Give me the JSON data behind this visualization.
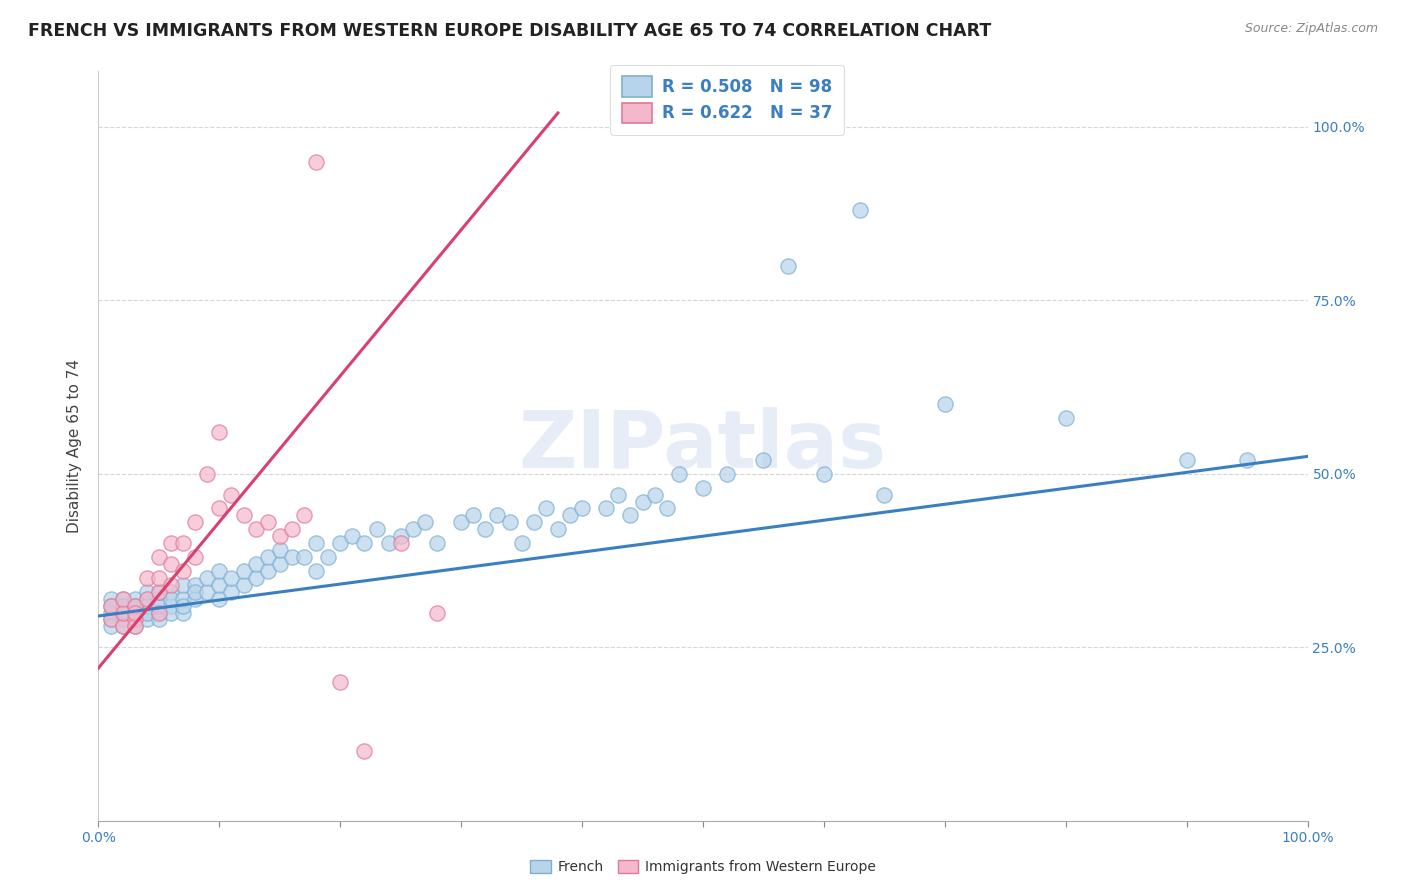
{
  "title": "FRENCH VS IMMIGRANTS FROM WESTERN EUROPE DISABILITY AGE 65 TO 74 CORRELATION CHART",
  "source": "Source: ZipAtlas.com",
  "ylabel": "Disability Age 65 to 74",
  "xlim": [
    0,
    1
  ],
  "ylim": [
    0.0,
    1.08
  ],
  "watermark": "ZIPatlas",
  "french_color": "#b8d4ea",
  "french_edge_color": "#7bafd4",
  "immigrant_color": "#f4b8cc",
  "immigrant_edge_color": "#e07898",
  "trend_french_color": "#3a7fc1",
  "trend_immigrant_color": "#d94070",
  "legend_R_french": "R = 0.508",
  "legend_N_french": "N = 98",
  "legend_R_immigrant": "R = 0.622",
  "legend_N_immigrant": "N = 37",
  "legend_label_french": "French",
  "legend_label_immigrant": "Immigrants from Western Europe",
  "french_trend_x": [
    0.0,
    1.0
  ],
  "french_trend_y": [
    0.295,
    0.525
  ],
  "immigrant_trend_x": [
    0.0,
    0.38
  ],
  "immigrant_trend_y": [
    0.22,
    1.02
  ],
  "grid_color": "#cccccc",
  "background_color": "#ffffff",
  "title_fontsize": 12.5,
  "axis_fontsize": 11,
  "tick_fontsize": 10,
  "legend_fontsize": 12,
  "french_x": [
    0.01,
    0.01,
    0.01,
    0.01,
    0.01,
    0.02,
    0.02,
    0.02,
    0.02,
    0.02,
    0.02,
    0.02,
    0.03,
    0.03,
    0.03,
    0.03,
    0.03,
    0.03,
    0.04,
    0.04,
    0.04,
    0.04,
    0.04,
    0.04,
    0.05,
    0.05,
    0.05,
    0.05,
    0.05,
    0.06,
    0.06,
    0.06,
    0.06,
    0.07,
    0.07,
    0.07,
    0.07,
    0.08,
    0.08,
    0.08,
    0.09,
    0.09,
    0.1,
    0.1,
    0.1,
    0.11,
    0.11,
    0.12,
    0.12,
    0.13,
    0.13,
    0.14,
    0.14,
    0.15,
    0.15,
    0.16,
    0.17,
    0.18,
    0.18,
    0.19,
    0.2,
    0.21,
    0.22,
    0.23,
    0.24,
    0.25,
    0.26,
    0.27,
    0.28,
    0.3,
    0.31,
    0.32,
    0.33,
    0.34,
    0.35,
    0.36,
    0.37,
    0.38,
    0.39,
    0.4,
    0.42,
    0.43,
    0.44,
    0.45,
    0.46,
    0.47,
    0.48,
    0.5,
    0.52,
    0.55,
    0.57,
    0.6,
    0.63,
    0.65,
    0.7,
    0.8,
    0.9,
    0.95
  ],
  "french_y": [
    0.3,
    0.32,
    0.29,
    0.31,
    0.28,
    0.3,
    0.29,
    0.31,
    0.28,
    0.3,
    0.32,
    0.31,
    0.29,
    0.31,
    0.28,
    0.3,
    0.32,
    0.31,
    0.3,
    0.32,
    0.29,
    0.31,
    0.33,
    0.3,
    0.3,
    0.32,
    0.31,
    0.29,
    0.33,
    0.31,
    0.33,
    0.3,
    0.32,
    0.3,
    0.32,
    0.34,
    0.31,
    0.32,
    0.34,
    0.33,
    0.33,
    0.35,
    0.32,
    0.34,
    0.36,
    0.33,
    0.35,
    0.34,
    0.36,
    0.35,
    0.37,
    0.36,
    0.38,
    0.37,
    0.39,
    0.38,
    0.38,
    0.36,
    0.4,
    0.38,
    0.4,
    0.41,
    0.4,
    0.42,
    0.4,
    0.41,
    0.42,
    0.43,
    0.4,
    0.43,
    0.44,
    0.42,
    0.44,
    0.43,
    0.4,
    0.43,
    0.45,
    0.42,
    0.44,
    0.45,
    0.45,
    0.47,
    0.44,
    0.46,
    0.47,
    0.45,
    0.5,
    0.48,
    0.5,
    0.52,
    0.8,
    0.5,
    0.88,
    0.47,
    0.6,
    0.58,
    0.52,
    0.52
  ],
  "immigrant_x": [
    0.01,
    0.01,
    0.02,
    0.02,
    0.02,
    0.03,
    0.03,
    0.03,
    0.03,
    0.04,
    0.04,
    0.05,
    0.05,
    0.05,
    0.05,
    0.06,
    0.06,
    0.06,
    0.07,
    0.07,
    0.08,
    0.08,
    0.09,
    0.1,
    0.1,
    0.11,
    0.12,
    0.13,
    0.14,
    0.15,
    0.16,
    0.17,
    0.18,
    0.2,
    0.22,
    0.25,
    0.28
  ],
  "immigrant_y": [
    0.29,
    0.31,
    0.28,
    0.3,
    0.32,
    0.29,
    0.31,
    0.28,
    0.3,
    0.32,
    0.35,
    0.3,
    0.33,
    0.35,
    0.38,
    0.34,
    0.37,
    0.4,
    0.36,
    0.4,
    0.38,
    0.43,
    0.5,
    0.45,
    0.56,
    0.47,
    0.44,
    0.42,
    0.43,
    0.41,
    0.42,
    0.44,
    0.95,
    0.2,
    0.1,
    0.4,
    0.3
  ]
}
